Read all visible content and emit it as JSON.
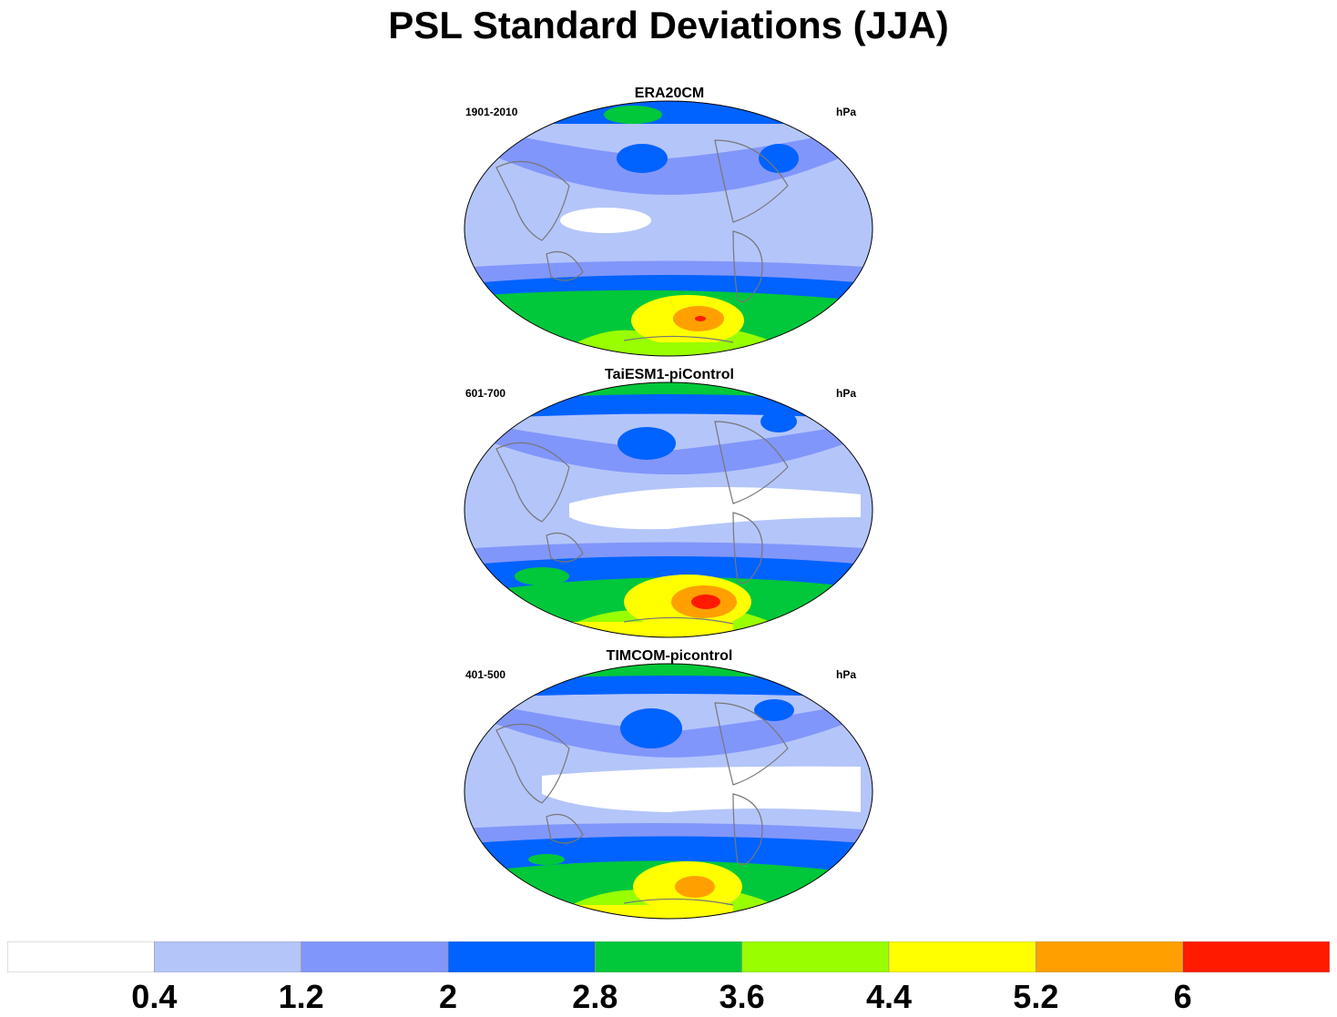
{
  "title": "PSL Standard Deviations (JJA)",
  "panels": [
    {
      "title": "ERA20CM",
      "left": "1901-2010",
      "right": "hPa"
    },
    {
      "title": "TaiESM1-piControl",
      "left": "601-700",
      "right": "hPa"
    },
    {
      "title": "TIMCOM-picontrol",
      "left": "401-500",
      "right": "hPa"
    }
  ],
  "colorbar": {
    "labels": [
      "0.4",
      "1.2",
      "2",
      "2.8",
      "3.6",
      "4.4",
      "5.2",
      "6"
    ],
    "colors": [
      "#ffffff",
      "#b4c5fa",
      "#8196fa",
      "#0062ff",
      "#00c83a",
      "#99ff00",
      "#ffff00",
      "#ffa000",
      "#ff1a00"
    ]
  },
  "colors": {
    "land_outline": "#777777",
    "map_border": "#000000"
  }
}
